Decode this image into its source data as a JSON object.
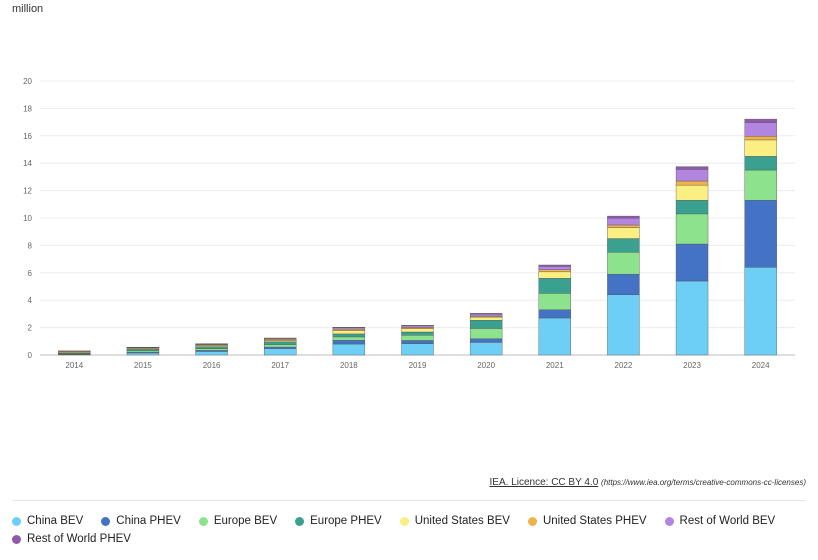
{
  "unit_label": "million",
  "attribution": {
    "main": "IEA. Licence: CC BY 4.0",
    "url": "(https://www.iea.org/terms/creative-commons-cc-licenses)"
  },
  "chart_data": {
    "type": "bar",
    "stacked": true,
    "categories": [
      "2014",
      "2015",
      "2016",
      "2017",
      "2018",
      "2019",
      "2020",
      "2021",
      "2022",
      "2023",
      "2024"
    ],
    "ylim": [
      0,
      20
    ],
    "yticks": [
      0,
      2,
      4,
      6,
      8,
      10,
      12,
      14,
      16,
      18,
      20
    ],
    "grid": true,
    "legend_position": "bottom",
    "series": [
      {
        "name": "China BEV",
        "color": "#6ecff6",
        "values": [
          0.03,
          0.15,
          0.26,
          0.47,
          0.8,
          0.83,
          0.92,
          2.7,
          4.4,
          5.4,
          6.4
        ]
      },
      {
        "name": "China PHEV",
        "color": "#4472c4",
        "values": [
          0.02,
          0.05,
          0.08,
          0.11,
          0.27,
          0.23,
          0.27,
          0.6,
          1.5,
          2.7,
          4.9
        ]
      },
      {
        "name": "Europe BEV",
        "color": "#8de28d",
        "values": [
          0.05,
          0.1,
          0.12,
          0.18,
          0.25,
          0.38,
          0.75,
          1.2,
          1.6,
          2.2,
          2.2
        ]
      },
      {
        "name": "Europe PHEV",
        "color": "#3aa08f",
        "values": [
          0.05,
          0.11,
          0.15,
          0.2,
          0.22,
          0.24,
          0.6,
          1.1,
          1.0,
          1.0,
          1.0
        ]
      },
      {
        "name": "United States BEV",
        "color": "#fbee82",
        "values": [
          0.07,
          0.07,
          0.08,
          0.1,
          0.23,
          0.24,
          0.23,
          0.47,
          0.8,
          1.1,
          1.2
        ]
      },
      {
        "name": "United States PHEV",
        "color": "#f0b34a",
        "values": [
          0.05,
          0.04,
          0.07,
          0.09,
          0.12,
          0.09,
          0.07,
          0.15,
          0.19,
          0.3,
          0.27
        ]
      },
      {
        "name": "Rest of World BEV",
        "color": "#b286e0",
        "values": [
          0.02,
          0.03,
          0.04,
          0.06,
          0.1,
          0.12,
          0.15,
          0.25,
          0.5,
          0.85,
          1.0
        ]
      },
      {
        "name": "Rest of World PHEV",
        "color": "#8e5aa8",
        "values": [
          0.01,
          0.02,
          0.02,
          0.03,
          0.04,
          0.04,
          0.05,
          0.1,
          0.15,
          0.2,
          0.25
        ]
      }
    ]
  }
}
